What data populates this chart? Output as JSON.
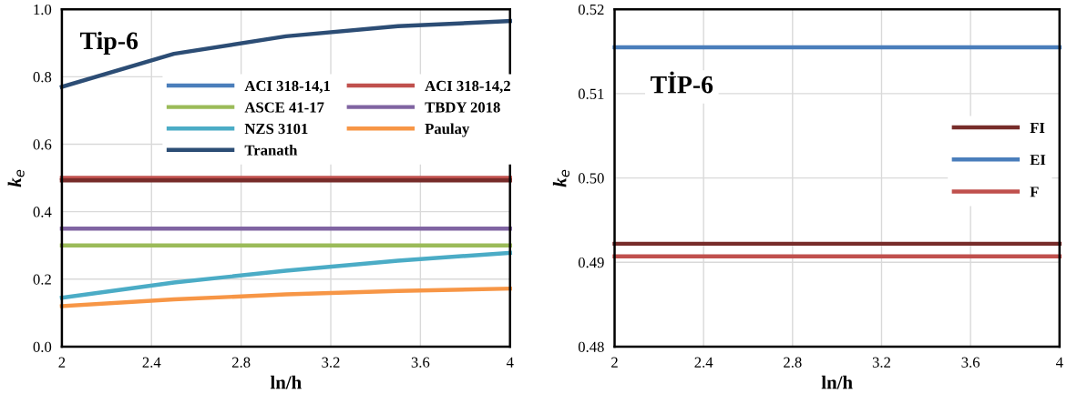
{
  "chart_data": [
    {
      "type": "line",
      "title": "Tip-6",
      "xlabel": "ln/h",
      "ylabel": "k$_{e}$",
      "x": [
        2,
        2.5,
        3,
        3.5,
        4
      ],
      "xlim": [
        2,
        4
      ],
      "xticks": [
        2,
        2.4,
        2.8,
        3.2,
        3.6,
        4
      ],
      "ylim": [
        0,
        1
      ],
      "yticks": [
        {
          "value": 0,
          "label": "0.0"
        },
        0.2,
        0.4,
        0.6,
        0.8,
        {
          "value": 1,
          "label": "1.0"
        }
      ],
      "grid": true,
      "legend": "top",
      "marker": "none",
      "line_style": "solid",
      "series": [
        {
          "name": "ACI 318-14,1",
          "color": "#4a7ebb",
          "values": [
            null,
            null,
            null,
            null,
            null
          ]
        },
        {
          "name": "ACI 318-14,2",
          "color": "#c0504d",
          "values": [
            0.5,
            0.5,
            0.5,
            0.5,
            0.5
          ]
        },
        {
          "name": "ASCE 41-17",
          "color": "#9bbb59",
          "values": [
            0.3,
            0.3,
            0.3,
            0.3,
            0.3
          ]
        },
        {
          "name": "TBDY 2018",
          "color": "#8064a2",
          "values": [
            0.35,
            0.35,
            0.35,
            0.35,
            0.35
          ]
        },
        {
          "name": "NZS 3101",
          "color": "#4bacc6",
          "values": [
            0.145,
            0.19,
            0.225,
            0.255,
            0.278
          ]
        },
        {
          "name": "Paulay",
          "color": "#f79646",
          "values": [
            0.12,
            0.14,
            0.155,
            0.165,
            0.172
          ]
        },
        {
          "name": "Tranath",
          "color": "#2c4d75",
          "values": [
            0.77,
            0.868,
            0.92,
            0.95,
            0.965
          ]
        },
        {
          "color": "#772c2a",
          "values": [
            0.493,
            0.493,
            0.493,
            0.493,
            0.493
          ]
        }
      ]
    },
    {
      "type": "line",
      "title": "TİP-6",
      "xlabel": "ln/h",
      "ylabel": "k$_{e}$",
      "x": [
        2,
        4
      ],
      "xlim": [
        2,
        4
      ],
      "xticks": [
        2,
        2.4,
        2.8,
        3.2,
        3.6,
        4
      ],
      "ylim": [
        0.48,
        0.52
      ],
      "yticks": [
        0.48,
        0.49,
        {
          "value": 0.5,
          "label": "0.50"
        },
        0.51,
        0.52
      ],
      "grid": true,
      "legend": "right",
      "marker": "none",
      "line_style": "solid",
      "series": [
        {
          "name": "FI",
          "color": "#772c2a",
          "values": [
            0.4922,
            0.4922
          ]
        },
        {
          "name": "EI",
          "color": "#4a7ebb",
          "values": [
            0.5155,
            0.5155
          ]
        },
        {
          "name": "F",
          "color": "#c0504d",
          "values": [
            0.4907,
            0.4907
          ]
        }
      ]
    }
  ]
}
